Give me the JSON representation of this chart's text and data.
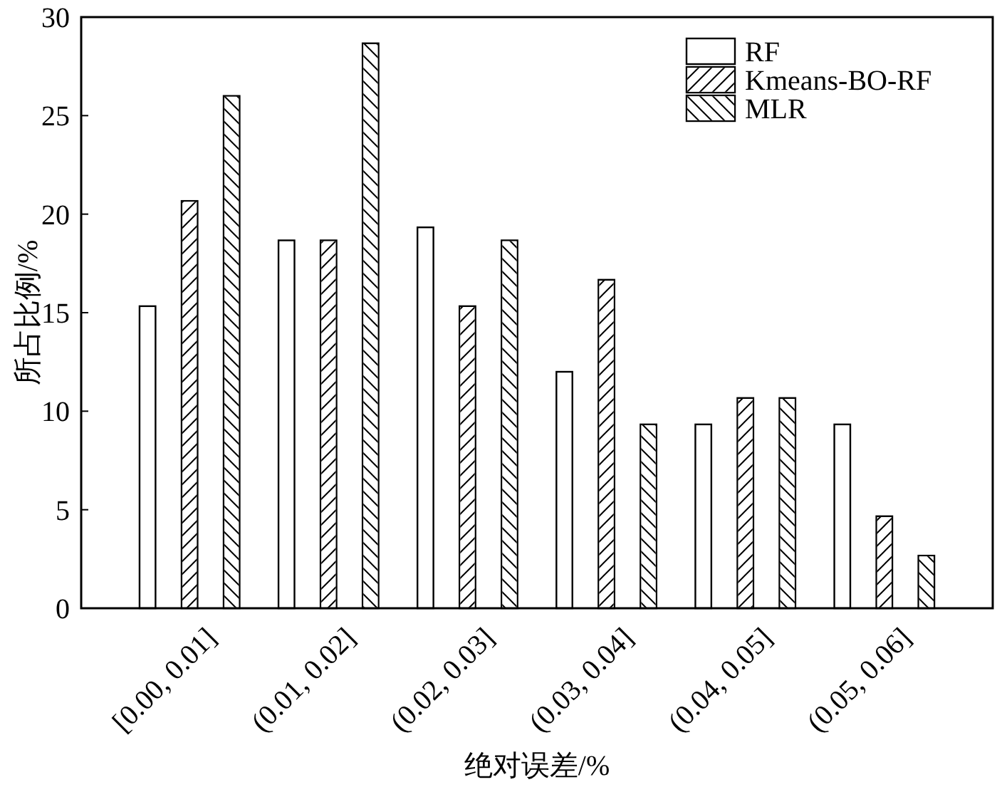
{
  "chart_data": {
    "type": "bar",
    "xlabel": "绝对误差/%",
    "ylabel": "所占比例/%",
    "categories": [
      "[0.00, 0.01]",
      "(0.01, 0.02]",
      "(0.02, 0.03]",
      "(0.03, 0.04]",
      "(0.04, 0.05]",
      "(0.05, 0.06]"
    ],
    "series": [
      {
        "name": "RF",
        "color": "#ffffff",
        "values": [
          15.33,
          18.67,
          19.33,
          12,
          9.33,
          9.33
        ]
      },
      {
        "name": "Kmeans-BO-RF",
        "color": "#ffffff",
        "values": [
          20.67,
          18.67,
          15.33,
          16.67,
          10.67,
          4.67
        ]
      },
      {
        "name": "MLR",
        "color": "#ffffff",
        "values": [
          26,
          28.67,
          18.67,
          9.33,
          10.67,
          2.67
        ]
      }
    ],
    "ylim": [
      0,
      30
    ],
    "yticks": [
      0,
      5,
      10,
      15,
      20,
      25,
      30
    ],
    "legend": "top right"
  }
}
